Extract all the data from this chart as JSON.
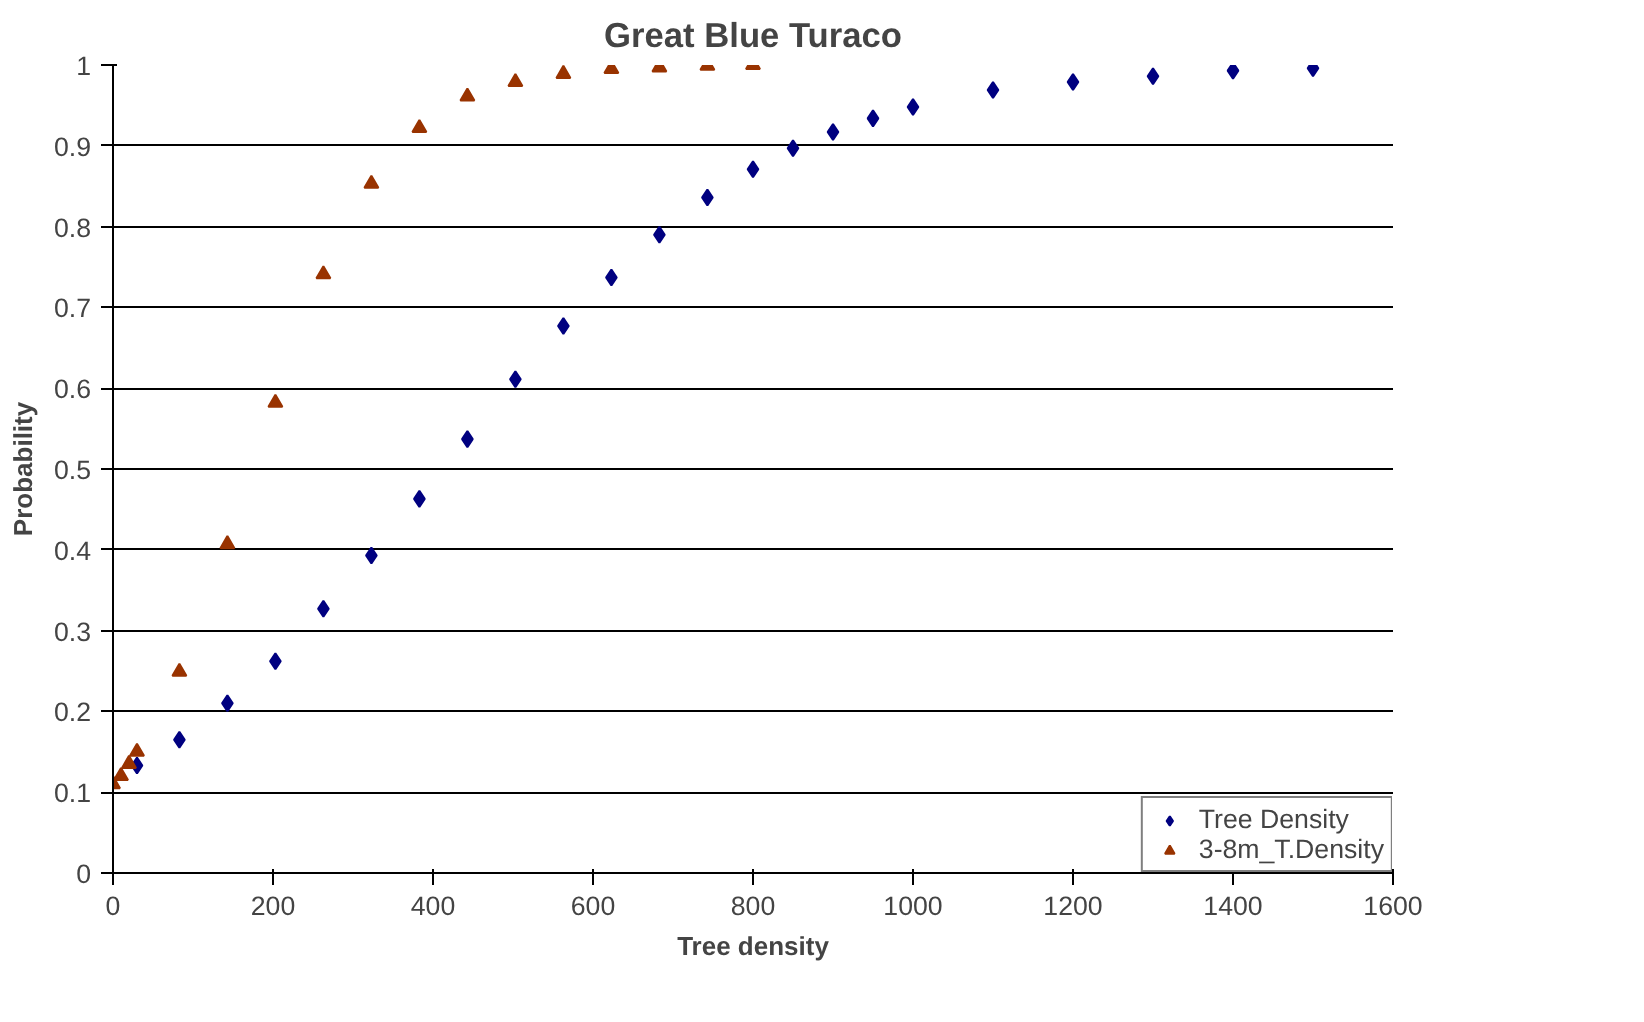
{
  "chart_data": {
    "type": "scatter",
    "title": "Great Blue Turaco",
    "xlabel": "Tree density",
    "ylabel": "Probability",
    "xlim": [
      0,
      1600
    ],
    "xticks": [
      0,
      200,
      400,
      600,
      800,
      1000,
      1200,
      1400,
      1600
    ],
    "ylim": [
      0,
      1
    ],
    "yticks": [
      0,
      0.1,
      0.2,
      0.3,
      0.4,
      0.5,
      0.6,
      0.7,
      0.8,
      0.9,
      1
    ],
    "grid": "y",
    "legend": "bottom right",
    "series": [
      {
        "name": "Tree Density",
        "color": "#000080",
        "marker": "diamond",
        "x": [
          30,
          83,
          143,
          203,
          263,
          323,
          383,
          443,
          503,
          563,
          623,
          683,
          743,
          800,
          850,
          900,
          950,
          1000,
          1100,
          1200,
          1300,
          1400,
          1500
        ],
        "values": [
          0.133,
          0.165,
          0.21,
          0.262,
          0.327,
          0.393,
          0.463,
          0.537,
          0.611,
          0.677,
          0.737,
          0.79,
          0.836,
          0.871,
          0.897,
          0.917,
          0.934,
          0.948,
          0.969,
          0.979,
          0.986,
          0.993,
          0.996
        ]
      },
      {
        "name": "3-8m_T.Density",
        "color": "#993300",
        "marker": "triangle",
        "x": [
          0,
          10,
          20,
          30,
          83,
          143,
          203,
          263,
          323,
          383,
          443,
          503,
          563,
          623,
          683,
          743,
          800
        ],
        "values": [
          0.11,
          0.12,
          0.135,
          0.15,
          0.249,
          0.407,
          0.582,
          0.741,
          0.853,
          0.922,
          0.961,
          0.979,
          0.989,
          0.995,
          0.997,
          0.999,
          1.0
        ]
      }
    ]
  }
}
